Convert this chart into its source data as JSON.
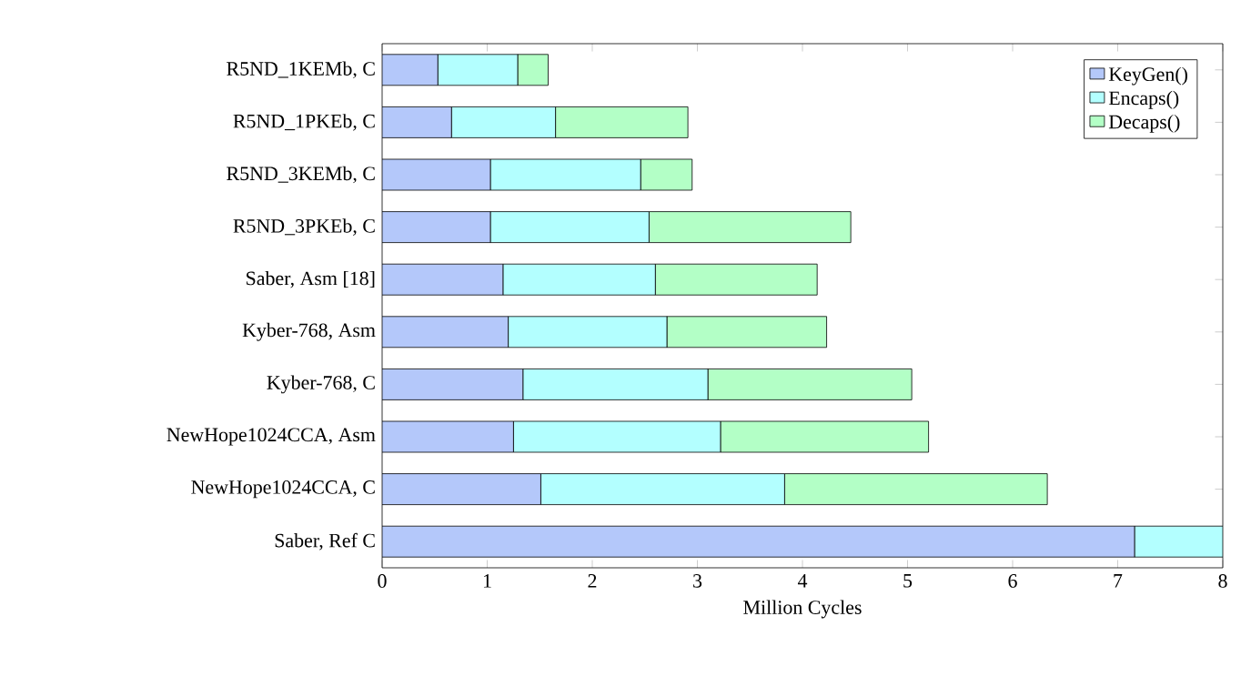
{
  "chart_data": {
    "type": "bar",
    "orientation": "horizontal",
    "stacked": true,
    "categories": [
      "R5ND_1KEMb, C",
      "R5ND_1PKEb, C",
      "R5ND_3KEMb, C",
      "R5ND_3PKEb, C",
      "Saber, Asm [18]",
      "Kyber-768, Asm",
      "Kyber-768, C",
      "NewHope1024CCA, Asm",
      "NewHope1024CCA, C",
      "Saber, Ref C"
    ],
    "series": [
      {
        "name": "KeyGen()",
        "color": "#b4c8fa",
        "values": [
          0.53,
          0.66,
          1.03,
          1.03,
          1.15,
          1.2,
          1.34,
          1.25,
          1.51,
          7.16
        ]
      },
      {
        "name": "Encaps()",
        "color": "#b3ffff",
        "values": [
          0.76,
          0.99,
          1.43,
          1.51,
          1.45,
          1.51,
          1.76,
          1.97,
          2.32,
          0.84
        ]
      },
      {
        "name": "Decaps()",
        "color": "#b3ffc6",
        "values": [
          0.29,
          1.26,
          0.49,
          1.92,
          1.54,
          1.52,
          1.94,
          1.98,
          2.5,
          null
        ]
      }
    ],
    "xlim": [
      0,
      8
    ],
    "xticks": [
      0,
      1,
      2,
      3,
      4,
      5,
      6,
      7,
      8
    ],
    "xlabel": "Million Cycles",
    "legend": "top right"
  }
}
